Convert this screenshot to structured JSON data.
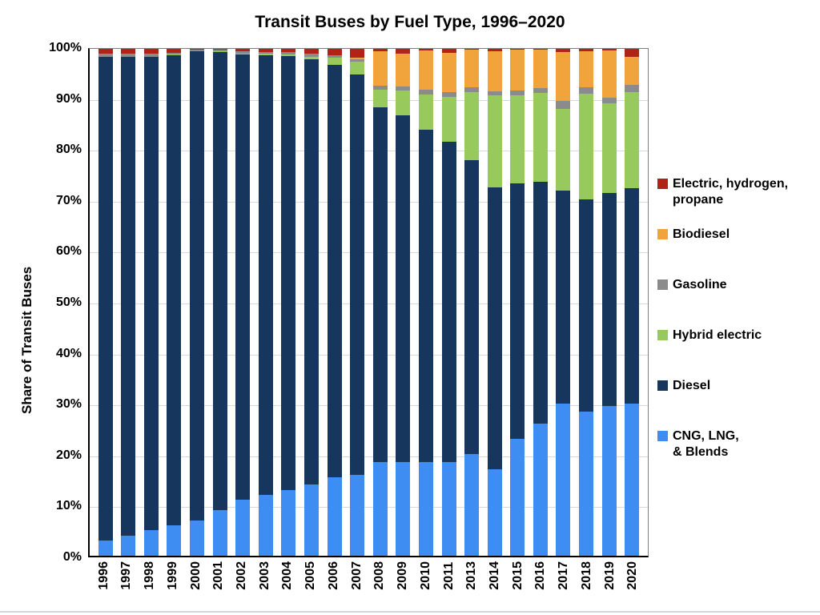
{
  "page": {
    "bottom_divider_color": "#ccd6de"
  },
  "chart_data": {
    "type": "bar",
    "variant": "100%-stacked-column",
    "title": "Transit Buses by Fuel Type, 1996–2020",
    "ylabel": "Share of Transit Buses",
    "xlabel": "",
    "ylim": [
      0,
      100
    ],
    "yticks": [
      0,
      10,
      20,
      30,
      40,
      50,
      60,
      70,
      80,
      90,
      100
    ],
    "ytick_suffix": "%",
    "grid": "horizontal",
    "legend_position": "right",
    "categories": [
      "1996",
      "1997",
      "1998",
      "1999",
      "2000",
      "2001",
      "2002",
      "2003",
      "2004",
      "2005",
      "2006",
      "2007",
      "2008",
      "2009",
      "2010",
      "2011",
      "2013",
      "2014",
      "2015",
      "2016",
      "2017",
      "2018",
      "2019",
      "2020"
    ],
    "series": [
      {
        "key": "cng",
        "name": "CNG, LNG, & Blends",
        "legend_lines": [
          "CNG, LNG,",
          "& Blends"
        ],
        "color": "#3e8df2",
        "values": [
          3,
          4,
          5,
          6,
          7,
          9,
          11,
          12,
          13,
          14,
          15.5,
          16,
          18.5,
          18.5,
          18.5,
          18.5,
          20,
          17,
          23,
          26,
          30,
          28.5,
          29.5,
          30
        ]
      },
      {
        "key": "diesel",
        "name": "Diesel",
        "legend_lines": [
          "Diesel"
        ],
        "color": "#17365d",
        "values": [
          95.5,
          94.5,
          93.5,
          92.7,
          92.6,
          90.4,
          87.9,
          86.7,
          85.6,
          83.9,
          81.3,
          79,
          70,
          68.4,
          65.6,
          63.1,
          58,
          55.7,
          50.5,
          47.8,
          42,
          41.8,
          42,
          42.5
        ]
      },
      {
        "key": "hybrid-electric",
        "name": "Hybrid electric",
        "legend_lines": [
          "Hybrid electric"
        ],
        "color": "#97c95d",
        "values": [
          0,
          0,
          0,
          0.2,
          0,
          0.1,
          0.2,
          0.3,
          0.3,
          0.6,
          1.4,
          2.4,
          3.5,
          4.9,
          6.9,
          9,
          13.5,
          18.1,
          17.4,
          17.5,
          16.1,
          20.8,
          17.7,
          18.9
        ]
      },
      {
        "key": "gasoline",
        "name": "Gasoline",
        "legend_lines": [
          "Gasoline"
        ],
        "color": "#8b8b8b",
        "values": [
          0.5,
          0.5,
          0.5,
          0.3,
          0.2,
          0.3,
          0.4,
          0.4,
          0.4,
          0.5,
          0.6,
          0.6,
          0.7,
          0.8,
          1,
          0.9,
          1,
          0.8,
          0.9,
          0.9,
          1.6,
          1.4,
          1.2,
          1.5
        ]
      },
      {
        "key": "biodiesel",
        "name": "Biodiesel",
        "legend_lines": [
          "Biodiesel"
        ],
        "color": "#f1a33c",
        "values": [
          0,
          0,
          0,
          0,
          0,
          0,
          0,
          0,
          0,
          0,
          0,
          0.2,
          6.8,
          6.4,
          7.7,
          7.7,
          7.3,
          8,
          8,
          7.6,
          9.6,
          7.1,
          9.3,
          5.6
        ]
      },
      {
        "key": "electric-hydrogen-propane",
        "name": "Electric, hydrogen, propane",
        "legend_lines": [
          "Electric, hydrogen,",
          "propane"
        ],
        "color": "#b02318",
        "values": [
          1,
          1,
          1,
          0.8,
          0.2,
          0.2,
          0.5,
          0.6,
          0.7,
          1,
          1.2,
          1.8,
          0.5,
          1,
          0.3,
          0.8,
          0.2,
          0.4,
          0.2,
          0.2,
          0.7,
          0.4,
          0.3,
          1.5
        ]
      }
    ]
  }
}
